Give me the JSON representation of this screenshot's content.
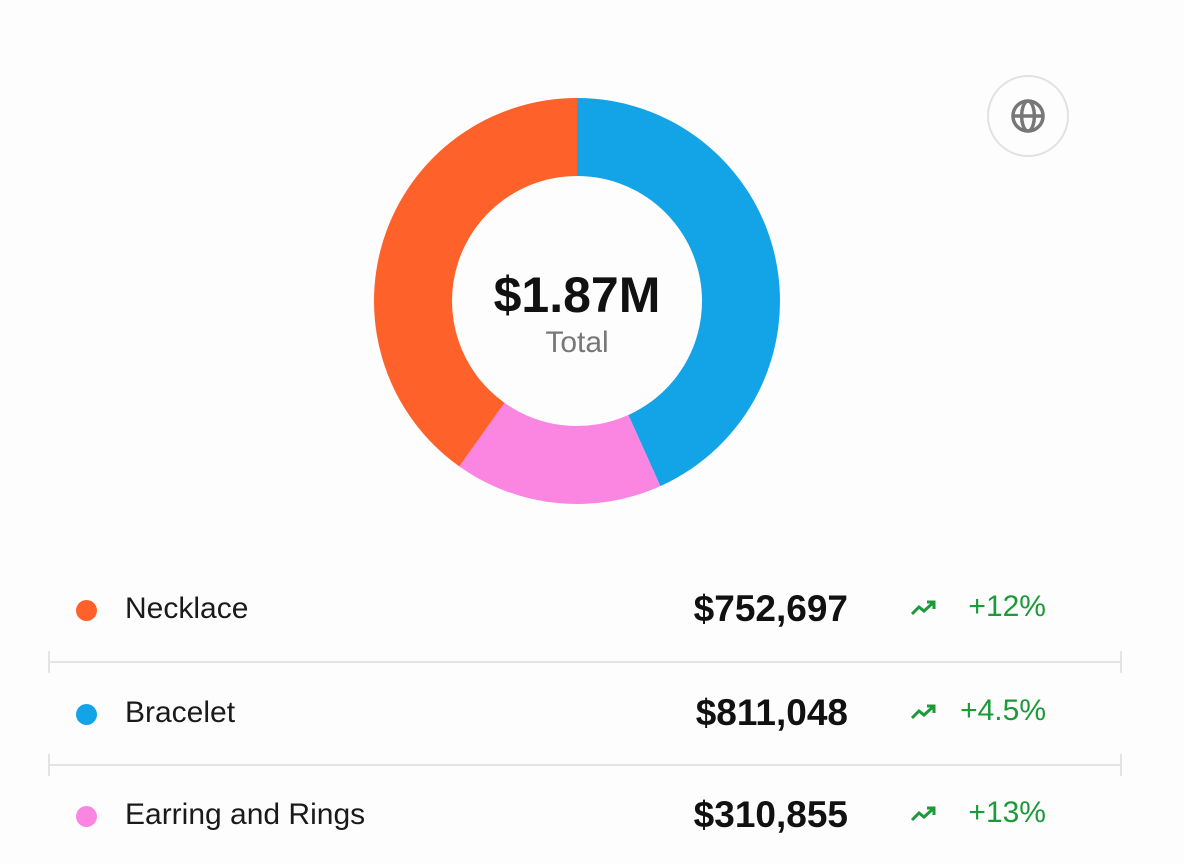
{
  "chart_data": {
    "type": "pie",
    "donut": true,
    "center_value": "$1.87M",
    "center_label": "Total",
    "slices": [
      {
        "name": "Necklace",
        "value": 752697,
        "label": "$752,697",
        "change": "+12%",
        "color": "#ff612b"
      },
      {
        "name": "Bracelet",
        "value": 811048,
        "label": "$811,048",
        "change": "+4.5%",
        "color": "#13a4e8"
      },
      {
        "name": "Earring and Rings",
        "value": 310855,
        "label": "$310,855",
        "change": "+13%",
        "color": "#fa86e2"
      }
    ],
    "trend_color": "#1c9a3a"
  },
  "toolbar": {
    "globe_icon": "globe-icon"
  }
}
